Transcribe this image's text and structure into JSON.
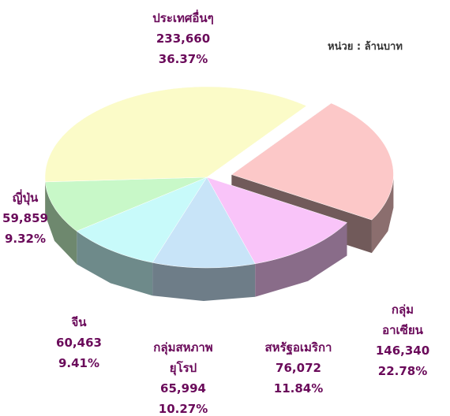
{
  "chart_data": {
    "type": "pie",
    "unit_note": "หน่วย : ล้านบาท",
    "categories": [
      "กลุ่มอาเซียน",
      "สหรัฐอเมริกา",
      "กลุ่มสหภาพ\nยุโรป",
      "จีน",
      "ญี่ปุ่น",
      "ประเทศอื่นๆ"
    ],
    "values": [
      146340,
      76072,
      65994,
      60463,
      59859,
      233660
    ],
    "value_labels": [
      "146,340",
      "76,072",
      "65,994",
      "60,463",
      "59,859",
      "233,660"
    ],
    "percent_labels": [
      "22.78%",
      "11.84%",
      "10.27%",
      "9.41%",
      "9.32%",
      "36.37%"
    ],
    "colors": [
      "#fcc8c8",
      "#f9c4f9",
      "#c8e4f8",
      "#c8fafa",
      "#c8f8c8",
      "#fbfbc8"
    ],
    "exploded": [
      true,
      false,
      false,
      false,
      false,
      false
    ]
  }
}
